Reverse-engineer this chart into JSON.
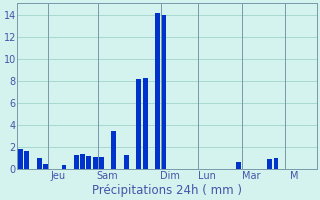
{
  "bar_values": [
    1.8,
    1.7,
    0,
    1.0,
    0.5,
    0,
    0,
    0.4,
    0,
    1.3,
    1.4,
    1.2,
    1.1,
    1.1,
    0,
    3.5,
    0,
    1.3,
    0,
    8.2,
    8.3,
    0,
    14.1,
    14.0,
    0,
    0,
    0,
    0,
    0,
    0,
    0,
    0,
    0,
    0,
    0,
    0.7,
    0,
    0,
    0,
    0,
    0.9,
    1.0,
    0,
    0,
    0,
    0,
    0,
    0
  ],
  "day_labels": [
    "Jeu",
    "Sam",
    "Dim",
    "Lun",
    "Mar",
    "M"
  ],
  "day_tick_positions": [
    6,
    14,
    24,
    30,
    37,
    44
  ],
  "day_vline_positions": [
    4.5,
    12.5,
    22.5,
    28.5,
    35.5,
    42.5
  ],
  "xlabel": "Précipitations 24h ( mm )",
  "ylim": [
    0,
    15
  ],
  "yticks": [
    0,
    2,
    4,
    6,
    8,
    10,
    12,
    14
  ],
  "bar_color": "#0033cc",
  "bg_color": "#d4f2ee",
  "grid_color": "#a8d8d0",
  "axis_color": "#7799aa",
  "text_color": "#4455aa",
  "xlabel_fontsize": 8.5,
  "tick_fontsize": 7,
  "bar_width": 0.8,
  "n_bars": 48,
  "xlim_left": -0.5,
  "xlim_right": 47.5
}
